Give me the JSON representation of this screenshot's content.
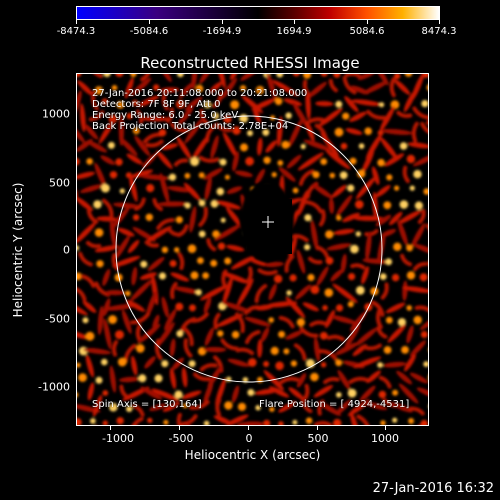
{
  "colorbar": {
    "labels": [
      "-8474.3",
      "-5084.6",
      "-1694.9",
      "1694.9",
      "5084.6",
      "8474.3"
    ]
  },
  "title": "Reconstructed RHESSI Image",
  "info": {
    "line1": "27-Jan-2016 20:11:08.000 to 20:21:08.000",
    "line2": "Detectors: 7F 8F 9F, Att 0",
    "line3": "Energy Range: 6.0 - 25.0 keV",
    "line4": "Back Projection   Total counts: 2.78E+04",
    "spin_axis": "Spin Axis = [130,164]",
    "flare_position": "Flare Position = [ 4924,-4531]"
  },
  "axes": {
    "xlabel": "Heliocentric X (arcsec)",
    "ylabel": "Heliocentric Y (arcsec)",
    "x_ticks": [
      "-1000",
      "-500",
      "0",
      "500",
      "1000"
    ],
    "y_ticks": [
      "1000",
      "500",
      "0",
      "-500",
      "-1000"
    ]
  },
  "timestamp": "27-Jan-2016 16:32"
}
